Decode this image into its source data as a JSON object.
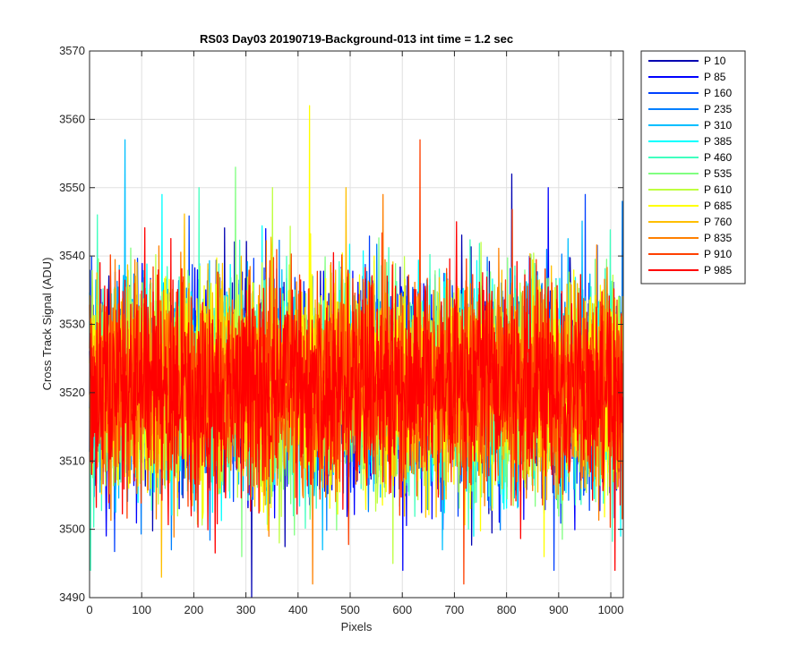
{
  "chart_data": {
    "type": "line",
    "title": "RS03 Day03 20190719-Background-013 int time = 1.2 sec",
    "xlabel": "Pixels",
    "ylabel": "Cross Track Signal (ADU)",
    "xlim": [
      0,
      1024
    ],
    "ylim": [
      3490,
      3570
    ],
    "xticks": [
      0,
      100,
      200,
      300,
      400,
      500,
      600,
      700,
      800,
      900,
      1000
    ],
    "yticks": [
      3490,
      3500,
      3510,
      3520,
      3530,
      3540,
      3550,
      3560,
      3570
    ],
    "grid": true,
    "legend_position": "outside-top-right",
    "x_points": 1024,
    "noise_mean": 3521,
    "series": [
      {
        "name": "P 10",
        "color": "#0000b2",
        "noise_min": 3490,
        "noise_max": 3552
      },
      {
        "name": "P 85",
        "color": "#0000ff",
        "noise_min": 3494,
        "noise_max": 3550
      },
      {
        "name": "P 160",
        "color": "#0040ff",
        "noise_min": 3494,
        "noise_max": 3549
      },
      {
        "name": "P 235",
        "color": "#0080ff",
        "noise_min": 3497,
        "noise_max": 3548
      },
      {
        "name": "P 310",
        "color": "#00bfff",
        "noise_min": 3497,
        "noise_max": 3557
      },
      {
        "name": "P 385",
        "color": "#00ffff",
        "noise_min": 3499,
        "noise_max": 3549
      },
      {
        "name": "P 460",
        "color": "#40ffbf",
        "noise_min": 3494,
        "noise_max": 3550
      },
      {
        "name": "P 535",
        "color": "#80ff80",
        "noise_min": 3496,
        "noise_max": 3553
      },
      {
        "name": "P 610",
        "color": "#bfff40",
        "noise_min": 3495,
        "noise_max": 3550
      },
      {
        "name": "P 685",
        "color": "#ffff00",
        "noise_min": 3496,
        "noise_max": 3562
      },
      {
        "name": "P 760",
        "color": "#ffbf00",
        "noise_min": 3493,
        "noise_max": 3550
      },
      {
        "name": "P 835",
        "color": "#ff8000",
        "noise_min": 3492,
        "noise_max": 3549
      },
      {
        "name": "P 910",
        "color": "#ff4000",
        "noise_min": 3492,
        "noise_max": 3557
      },
      {
        "name": "P 985",
        "color": "#ff0000",
        "noise_min": 3494,
        "noise_max": 3545
      }
    ]
  }
}
